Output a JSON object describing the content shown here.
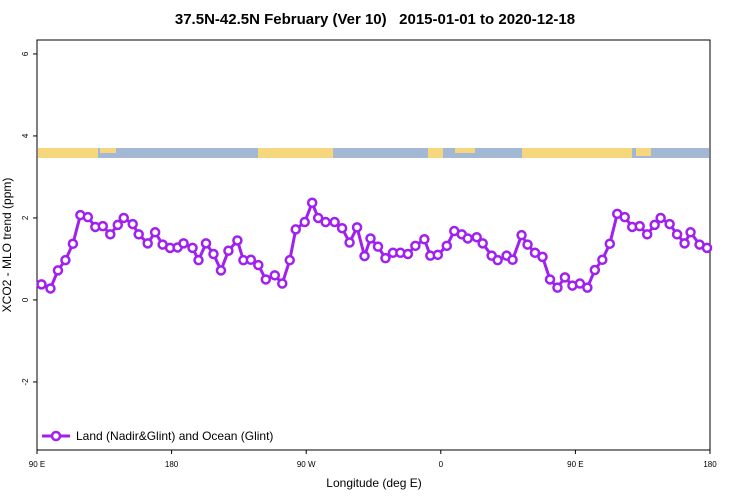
{
  "chart_data": {
    "type": "line",
    "title": "37.5N-42.5N February (Ver 10)   2015-01-01 to 2020-12-18",
    "x_label": "Longitude (deg E)",
    "y_label": "XCO2 - MLO trend (ppm)",
    "xlim": [
      90,
      540
    ],
    "xticks": [
      {
        "value": 90,
        "label": "90 E"
      },
      {
        "value": 180,
        "label": "180"
      },
      {
        "value": 270,
        "label": "90 W"
      },
      {
        "value": 360,
        "label": "0"
      },
      {
        "value": 450,
        "label": "90 E"
      },
      {
        "value": 540,
        "label": "180"
      }
    ],
    "ylim": [
      -3.66,
      6.34
    ],
    "yticks": [
      -2,
      0,
      2,
      4,
      6
    ],
    "grid": false,
    "legend": "bottom-left",
    "x": [
      93,
      99,
      104,
      109,
      114,
      119,
      124,
      129,
      134,
      139,
      144,
      148,
      154,
      158,
      164,
      169,
      174,
      179,
      184,
      188,
      194,
      198,
      203,
      208,
      213,
      218,
      224,
      228,
      233,
      238,
      243,
      249,
      254,
      259,
      263,
      269,
      274,
      278,
      283,
      289,
      294,
      299,
      304,
      309,
      313,
      318,
      323,
      328,
      333,
      338,
      343,
      349,
      353,
      358,
      364,
      369,
      374,
      378,
      384,
      388,
      394,
      398,
      404,
      408,
      414,
      418,
      423,
      428,
      433,
      438,
      443,
      448,
      453,
      458,
      463,
      468,
      473,
      478,
      483,
      488,
      493,
      498,
      503,
      507,
      513,
      518,
      523,
      527,
      533,
      538
    ],
    "series": [
      {
        "name": "Land (Nadir&Glint) and Ocean (Glint)",
        "color": "#a020f0",
        "values": [
          0.38,
          0.28,
          0.72,
          0.97,
          1.37,
          2.07,
          2.02,
          1.78,
          1.8,
          1.6,
          1.83,
          2.0,
          1.85,
          1.6,
          1.38,
          1.65,
          1.35,
          1.27,
          1.28,
          1.38,
          1.27,
          0.97,
          1.38,
          1.12,
          0.72,
          1.2,
          1.45,
          0.97,
          0.98,
          0.85,
          0.5,
          0.6,
          0.4,
          0.97,
          1.72,
          1.9,
          2.37,
          2.0,
          1.9,
          1.9,
          1.75,
          1.4,
          1.77,
          1.07,
          1.5,
          1.3,
          1.02,
          1.15,
          1.15,
          1.12,
          1.32,
          1.48,
          1.08,
          1.1,
          1.32,
          1.68,
          1.6,
          1.5,
          1.53,
          1.38,
          1.08,
          0.97,
          1.08,
          0.98,
          1.58,
          1.35,
          1.15,
          1.05,
          0.5,
          0.3,
          0.55,
          0.35,
          0.4,
          0.3,
          0.73,
          0.98,
          1.37,
          2.1,
          2.02,
          1.78,
          1.8,
          1.6,
          1.83,
          2.0,
          1.85,
          1.6,
          1.38,
          1.65,
          1.35,
          1.27
        ]
      }
    ]
  }
}
